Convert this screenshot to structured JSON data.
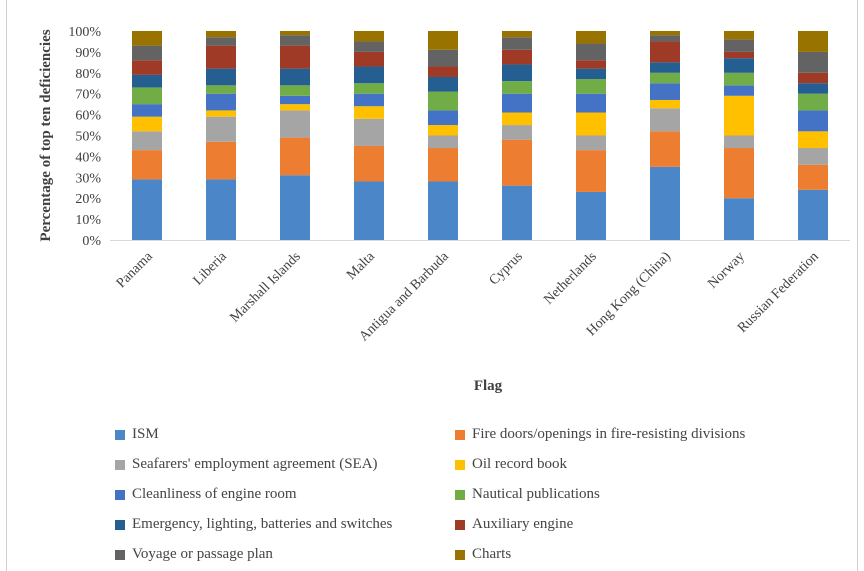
{
  "chart_data": {
    "type": "bar",
    "stacked": true,
    "percent": true,
    "title": "",
    "xlabel": "Flag",
    "ylabel": "Percentage of top ten deficiencies",
    "ylim": [
      0,
      100
    ],
    "yticks": [
      "0%",
      "10%",
      "20%",
      "30%",
      "40%",
      "50%",
      "60%",
      "70%",
      "80%",
      "90%",
      "100%"
    ],
    "grid": false,
    "legend_position": "bottom",
    "categories": [
      "Panama",
      "Liberia",
      "Marshall Islands",
      "Malta",
      "Antigua and Barbuda",
      "Cyprus",
      "Netherlands",
      "Hong Kong (China)",
      "Norway",
      "Russian Federation"
    ],
    "series": [
      {
        "name": "ISM",
        "color": "#4a86c8",
        "values": [
          29,
          29,
          31,
          28,
          28,
          26,
          23,
          35,
          20,
          24
        ]
      },
      {
        "name": "Fire doors/openings in fire-resisting divisions",
        "color": "#ed7d31",
        "values": [
          14,
          18,
          18,
          17,
          16,
          22,
          20,
          17,
          24,
          12
        ]
      },
      {
        "name": "Seafarers' employment agreement (SEA)",
        "color": "#a5a5a5",
        "values": [
          9,
          12,
          13,
          13,
          6,
          7,
          7,
          11,
          6,
          8
        ]
      },
      {
        "name": "Oil record book",
        "color": "#ffc000",
        "values": [
          7,
          3,
          3,
          6,
          5,
          6,
          11,
          4,
          19,
          8
        ]
      },
      {
        "name": "Cleanliness of engine room",
        "color": "#4472c4",
        "values": [
          6,
          8,
          4,
          6,
          7,
          9,
          9,
          8,
          5,
          10
        ]
      },
      {
        "name": "Nautical publications",
        "color": "#70ad47",
        "values": [
          8,
          4,
          5,
          5,
          9,
          6,
          7,
          5,
          6,
          8
        ]
      },
      {
        "name": "Emergency, lighting, batteries and switches",
        "color": "#255e91",
        "values": [
          6,
          8,
          8,
          8,
          7,
          8,
          5,
          5,
          7,
          5
        ]
      },
      {
        "name": "Auxiliary engine",
        "color": "#9e3a26",
        "values": [
          7,
          11,
          11,
          7,
          5,
          7,
          4,
          10,
          3,
          5
        ]
      },
      {
        "name": "Voyage or passage plan",
        "color": "#636363",
        "values": [
          7,
          4,
          5,
          5,
          8,
          6,
          8,
          3,
          6,
          10
        ]
      },
      {
        "name": "Charts",
        "color": "#997300",
        "values": [
          7,
          3,
          2,
          5,
          9,
          3,
          6,
          2,
          4,
          10
        ]
      }
    ]
  }
}
